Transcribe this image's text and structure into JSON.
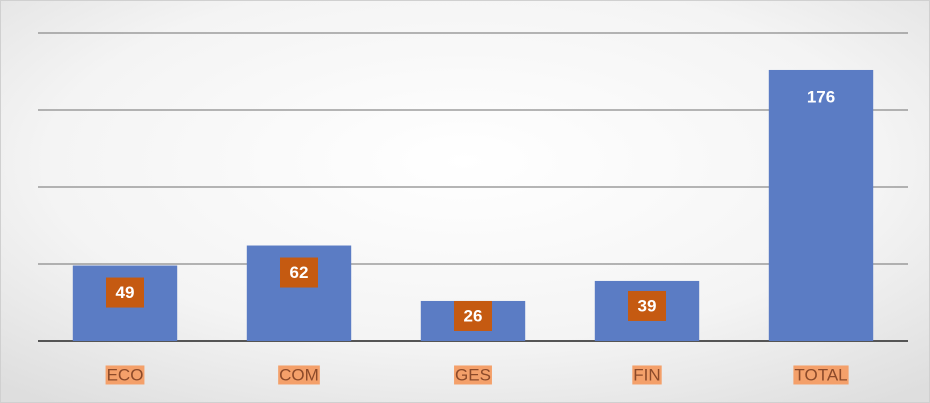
{
  "chart_data": {
    "type": "bar",
    "categories": [
      "ECO",
      "COM",
      "GES",
      "FIN",
      "TOTAL"
    ],
    "values": [
      49,
      62,
      26,
      39,
      176
    ],
    "color": "#5b7cc4",
    "ylim": [
      0,
      200
    ],
    "yticks": [
      0,
      50,
      100,
      150,
      200
    ],
    "grid": true
  }
}
